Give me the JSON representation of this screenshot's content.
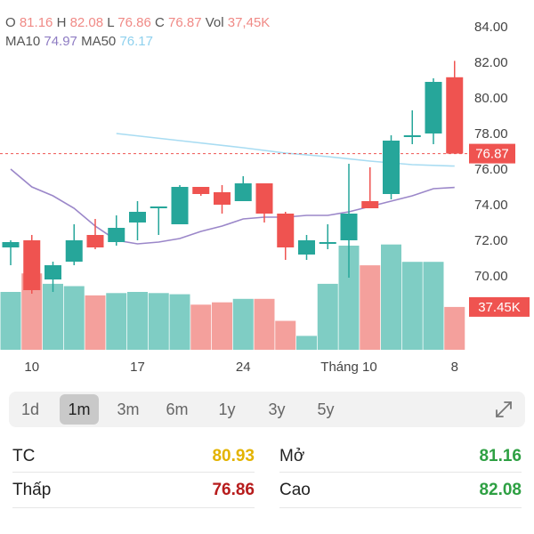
{
  "header": {
    "o_label": "O",
    "o_value": "81.16",
    "h_label": "H",
    "h_value": "82.08",
    "l_label": "L",
    "l_value": "76.86",
    "c_label": "C",
    "c_value": "76.87",
    "vol_label": "Vol",
    "vol_value": "37,45K",
    "ma10_label": "MA10",
    "ma10_value": "74.97",
    "ma50_label": "MA50",
    "ma50_value": "76.17"
  },
  "chart_data": {
    "type": "candlestick",
    "y_ticks": [
      "84.00",
      "82.00",
      "80.00",
      "78.00",
      "76.00",
      "74.00",
      "72.00",
      "70.00"
    ],
    "ylim": [
      68.5,
      84.0
    ],
    "x_ticks": [
      {
        "label": "10",
        "index": 1
      },
      {
        "label": "17",
        "index": 6
      },
      {
        "label": "24",
        "index": 11
      },
      {
        "label": "Tháng 10",
        "index": 16
      },
      {
        "label": "8",
        "index": 21
      }
    ],
    "current_price_label": "76.87",
    "current_price": 76.87,
    "current_volume_label": "37.45K",
    "colors": {
      "up": "#26a69a",
      "down": "#ef5350",
      "ma10": "#9b87c9",
      "ma50": "#a8dcf2",
      "price_line": "#ef5350",
      "vol_up": "#7fcdc4",
      "vol_down": "#f4a09c"
    },
    "candles": [
      {
        "o": 71.6,
        "h": 72.0,
        "l": 70.6,
        "c": 71.9
      },
      {
        "o": 72.0,
        "h": 72.3,
        "l": 69.0,
        "c": 69.2
      },
      {
        "o": 69.8,
        "h": 70.8,
        "l": 69.1,
        "c": 70.6
      },
      {
        "o": 70.8,
        "h": 72.9,
        "l": 70.6,
        "c": 72.0
      },
      {
        "o": 72.3,
        "h": 73.2,
        "l": 71.5,
        "c": 71.6
      },
      {
        "o": 71.9,
        "h": 73.4,
        "l": 71.7,
        "c": 72.7
      },
      {
        "o": 73.0,
        "h": 74.2,
        "l": 72.0,
        "c": 73.6
      },
      {
        "o": 73.9,
        "h": 73.9,
        "l": 72.3,
        "c": 73.9
      },
      {
        "o": 72.9,
        "h": 75.1,
        "l": 72.9,
        "c": 75.0
      },
      {
        "o": 75.0,
        "h": 75.0,
        "l": 74.5,
        "c": 74.6
      },
      {
        "o": 74.7,
        "h": 75.1,
        "l": 73.5,
        "c": 74.0
      },
      {
        "o": 74.2,
        "h": 75.6,
        "l": 74.2,
        "c": 75.2
      },
      {
        "o": 75.2,
        "h": 75.2,
        "l": 73.0,
        "c": 73.5
      },
      {
        "o": 73.5,
        "h": 73.6,
        "l": 70.9,
        "c": 71.6
      },
      {
        "o": 71.2,
        "h": 72.3,
        "l": 70.9,
        "c": 72.0
      },
      {
        "o": 71.9,
        "h": 72.9,
        "l": 71.5,
        "c": 71.9
      },
      {
        "o": 72.0,
        "h": 76.3,
        "l": 69.9,
        "c": 73.5
      },
      {
        "o": 74.2,
        "h": 76.1,
        "l": 73.8,
        "c": 73.8
      },
      {
        "o": 74.6,
        "h": 77.9,
        "l": 74.3,
        "c": 77.6
      },
      {
        "o": 77.9,
        "h": 79.3,
        "l": 77.4,
        "c": 77.9
      },
      {
        "o": 78.0,
        "h": 81.1,
        "l": 77.4,
        "c": 80.9
      },
      {
        "o": 81.16,
        "h": 82.08,
        "l": 76.86,
        "c": 76.87
      }
    ],
    "volumes": [
      0.5,
      0.66,
      0.57,
      0.55,
      0.47,
      0.49,
      0.5,
      0.49,
      0.48,
      0.39,
      0.41,
      0.44,
      0.44,
      0.25,
      0.12,
      0.57,
      0.9,
      0.73,
      0.91,
      0.76,
      0.76,
      0.37
    ],
    "ma10": [
      [
        0,
        76.0
      ],
      [
        1,
        75.0
      ],
      [
        2,
        74.5
      ],
      [
        3,
        73.8
      ],
      [
        4,
        72.8
      ],
      [
        5,
        72.0
      ],
      [
        6,
        71.8
      ],
      [
        7,
        71.9
      ],
      [
        8,
        72.1
      ],
      [
        9,
        72.5
      ],
      [
        10,
        72.8
      ],
      [
        11,
        73.2
      ],
      [
        12,
        73.3
      ],
      [
        13,
        73.3
      ],
      [
        14,
        73.4
      ],
      [
        15,
        73.4
      ],
      [
        16,
        73.6
      ],
      [
        17,
        73.9
      ],
      [
        18,
        74.2
      ],
      [
        19,
        74.5
      ],
      [
        20,
        74.9
      ],
      [
        21,
        74.97
      ]
    ],
    "ma50": [
      [
        5,
        78.0
      ],
      [
        8,
        77.6
      ],
      [
        11,
        77.2
      ],
      [
        13,
        76.9
      ],
      [
        15,
        76.7
      ],
      [
        17,
        76.45
      ],
      [
        19,
        76.25
      ],
      [
        21,
        76.17
      ]
    ]
  },
  "periods": [
    "1d",
    "1m",
    "3m",
    "6m",
    "1y",
    "3y",
    "5y"
  ],
  "active_period": "1m",
  "stats": {
    "tc_label": "TC",
    "tc_value": "80.93",
    "mo_label": "Mở",
    "mo_value": "81.16",
    "thap_label": "Thấp",
    "thap_value": "76.86",
    "cao_label": "Cao",
    "cao_value": "82.08",
    "colors": {
      "ref": "#e3b300",
      "down": "#b71c1c",
      "up": "#2ea043"
    }
  }
}
